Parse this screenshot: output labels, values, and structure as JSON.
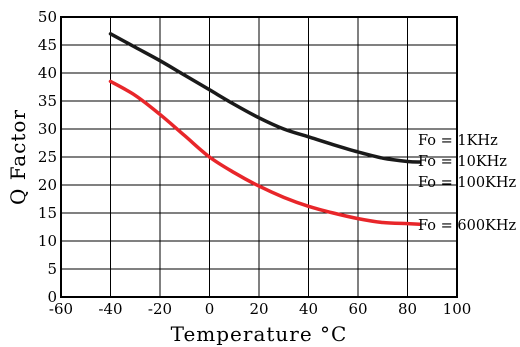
{
  "chart_data": {
    "type": "line",
    "xlabel": "Temperature °C",
    "ylabel": "Q Factor",
    "xlim": [
      -60,
      100
    ],
    "ylim": [
      0,
      50
    ],
    "x_ticks": [
      -60,
      -40,
      -20,
      0,
      20,
      40,
      60,
      80,
      100
    ],
    "y_ticks": [
      0,
      5,
      10,
      15,
      20,
      25,
      30,
      35,
      40,
      45,
      50
    ],
    "grid": true,
    "series": [
      {
        "color": "#1a1a1a",
        "x": [
          -40,
          -30,
          -20,
          -10,
          0,
          10,
          20,
          30,
          40,
          50,
          60,
          70,
          80,
          85
        ],
        "y": [
          47,
          44.6,
          42.2,
          39.6,
          37.0,
          34.4,
          32.0,
          30.0,
          28.6,
          27.2,
          25.9,
          24.8,
          24.2,
          24.1
        ]
      },
      {
        "color": "#e8262a",
        "x": [
          -40,
          -30,
          -20,
          -10,
          0,
          10,
          20,
          30,
          40,
          50,
          60,
          70,
          80,
          85
        ],
        "y": [
          38.5,
          36.0,
          32.6,
          28.8,
          25.0,
          22.2,
          19.8,
          17.8,
          16.2,
          15.0,
          14.0,
          13.3,
          13.1,
          13.0
        ]
      }
    ],
    "annotations": [
      "Fo = 1KHz",
      "Fo = 10KHz",
      "Fo = 100KHz",
      "Fo = 600KHz"
    ]
  }
}
